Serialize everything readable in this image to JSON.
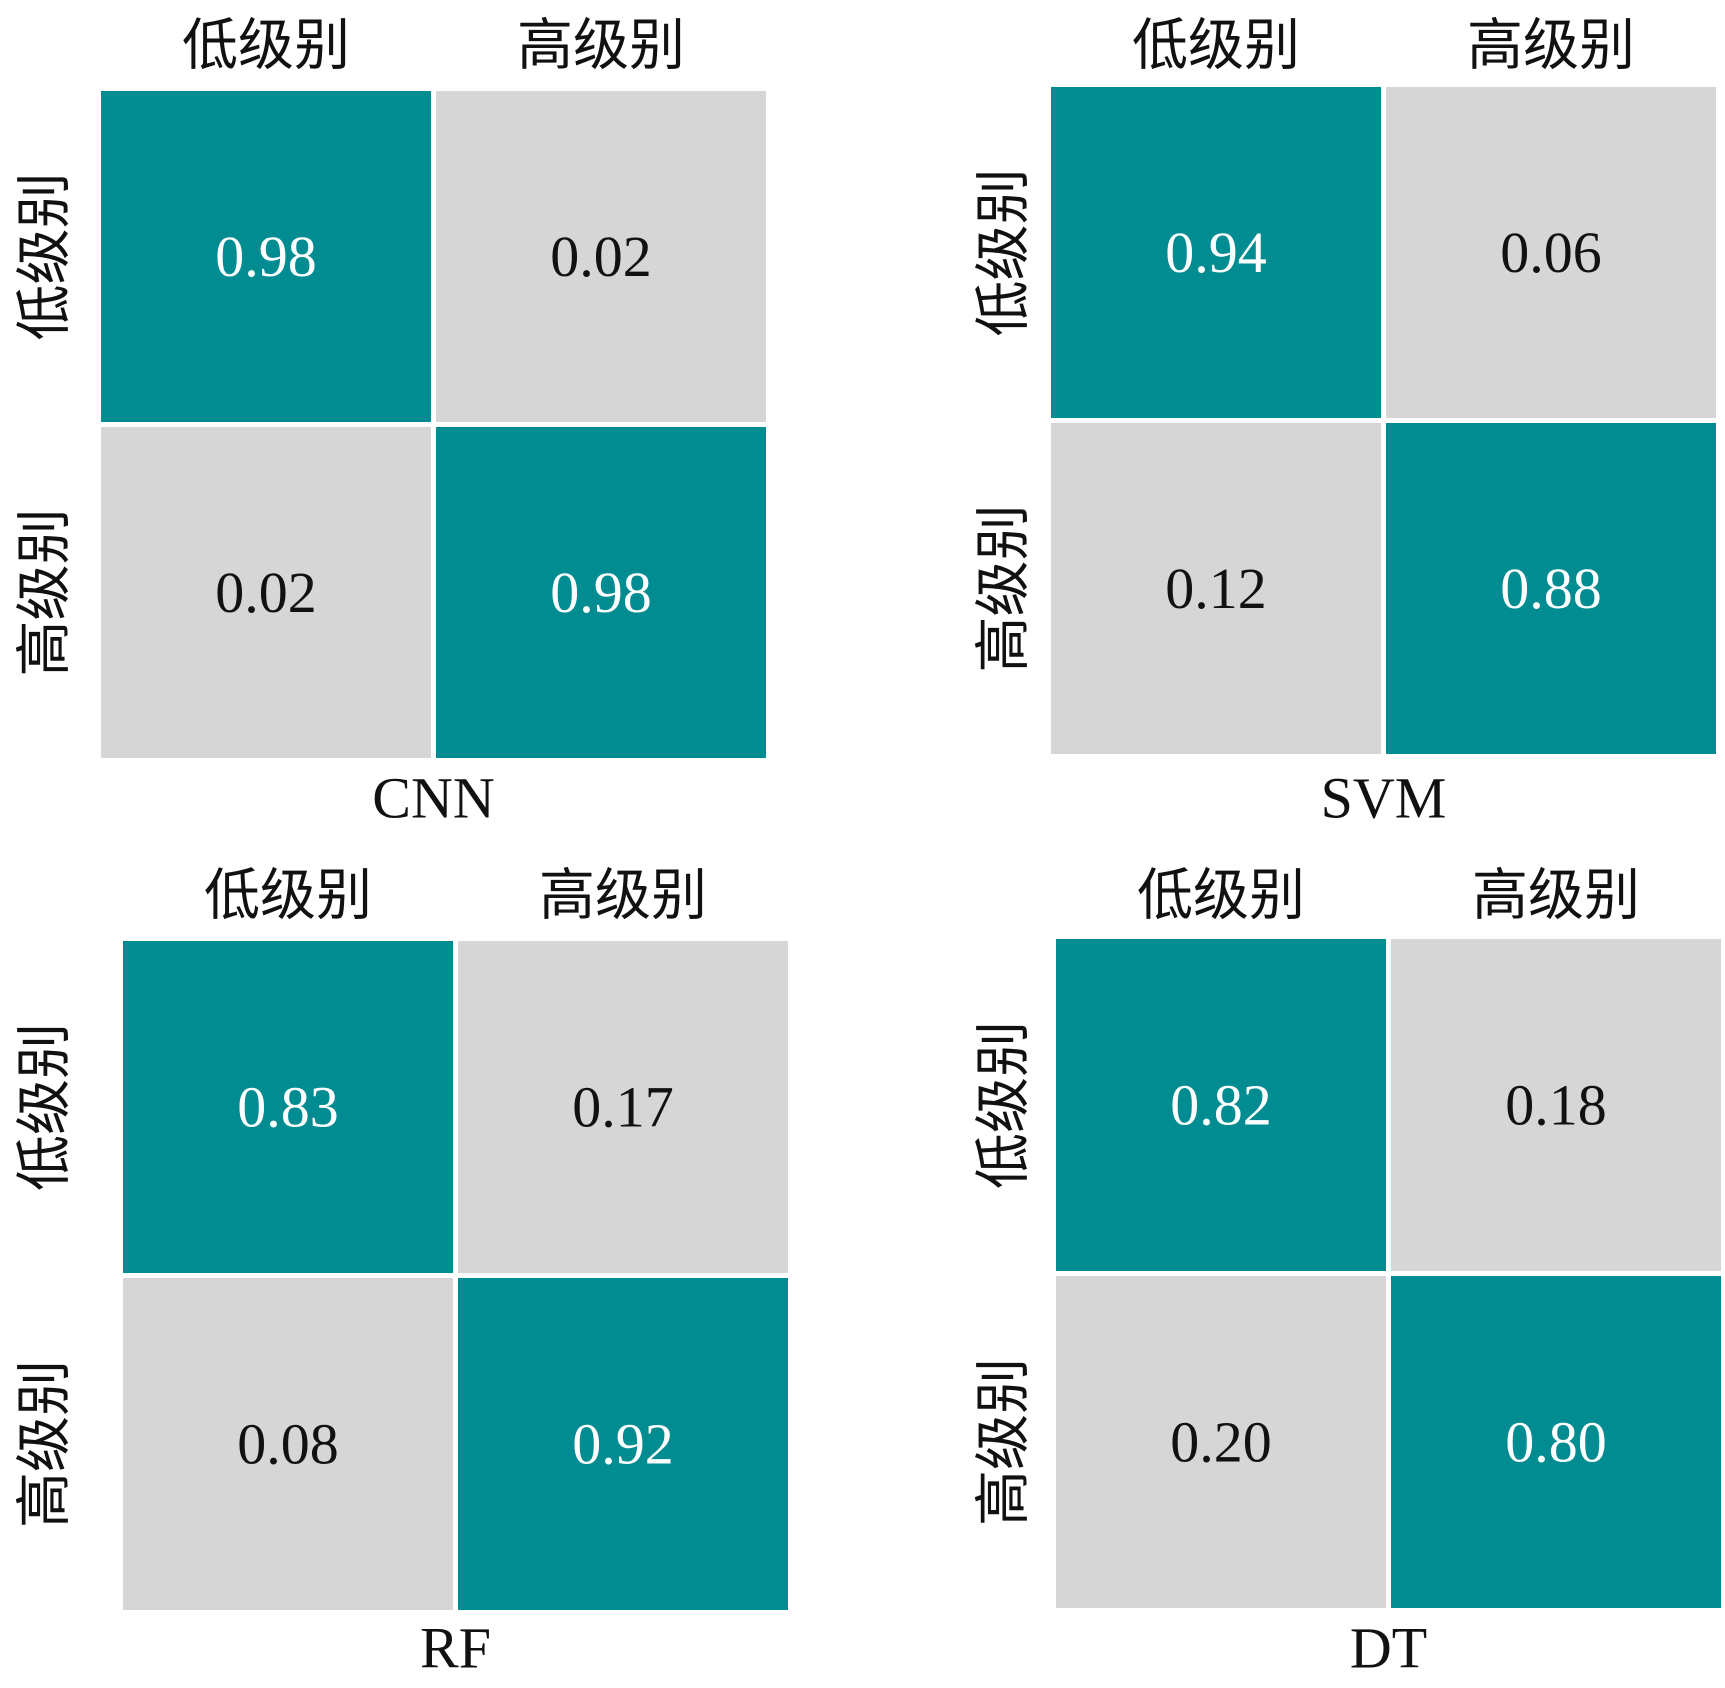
{
  "colors": {
    "diagonal": "#008c91",
    "off_diagonal": "#d6d6d6",
    "text_on_diagonal": "#ffffff",
    "text_on_off_diagonal": "#111111"
  },
  "chart_data": [
    {
      "type": "heatmap",
      "title": "CNN",
      "row_labels": [
        "低级别",
        "高级别"
      ],
      "col_labels": [
        "低级别",
        "高级别"
      ],
      "values": [
        [
          "0.98",
          "0.02"
        ],
        [
          "0.02",
          "0.98"
        ]
      ]
    },
    {
      "type": "heatmap",
      "title": "SVM",
      "row_labels": [
        "低级别",
        "高级别"
      ],
      "col_labels": [
        "低级别",
        "高级别"
      ],
      "values": [
        [
          "0.94",
          "0.06"
        ],
        [
          "0.12",
          "0.88"
        ]
      ]
    },
    {
      "type": "heatmap",
      "title": "RF",
      "row_labels": [
        "低级别",
        "高级别"
      ],
      "col_labels": [
        "低级别",
        "高级别"
      ],
      "values": [
        [
          "0.83",
          "0.17"
        ],
        [
          "0.08",
          "0.92"
        ]
      ]
    },
    {
      "type": "heatmap",
      "title": "DT",
      "row_labels": [
        "低级别",
        "高级别"
      ],
      "col_labels": [
        "低级别",
        "高级别"
      ],
      "values": [
        [
          "0.82",
          "0.18"
        ],
        [
          "0.20",
          "0.80"
        ]
      ]
    }
  ]
}
